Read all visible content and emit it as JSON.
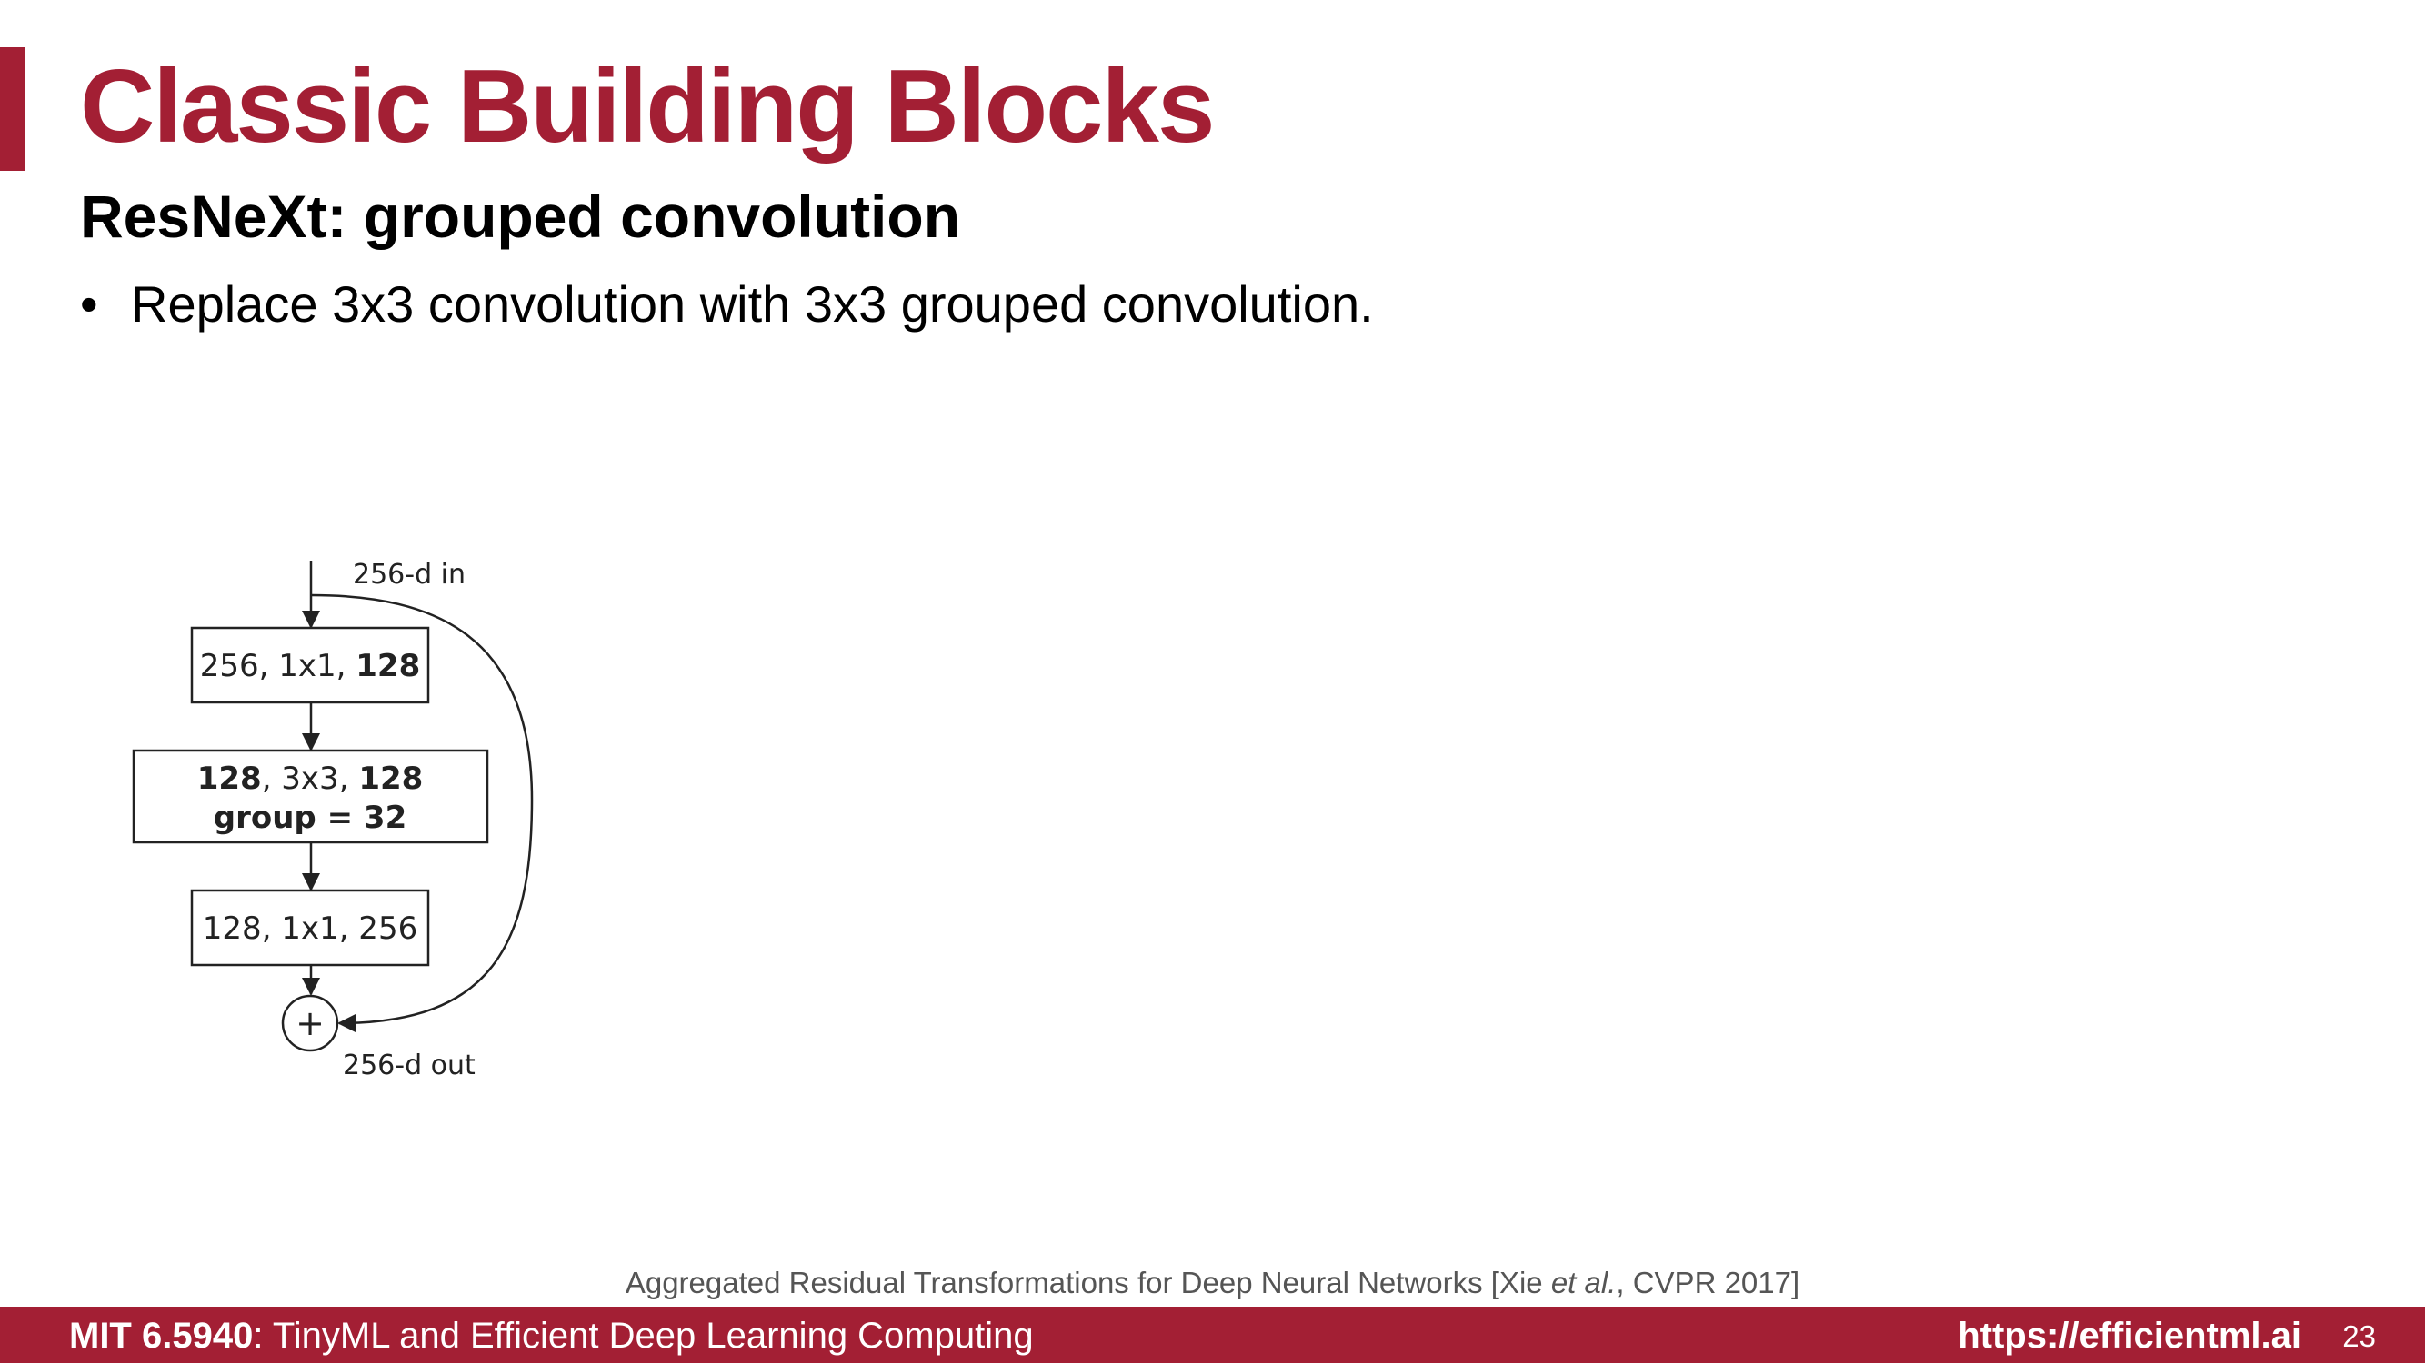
{
  "slide": {
    "title": "Classic Building Blocks",
    "subtitle": "ResNeXt: grouped convolution",
    "bullets": [
      "Replace 3x3 convolution with 3x3 grouped convolution."
    ],
    "bullet_symbol": "•"
  },
  "diagram": {
    "input_label": "256-d in",
    "output_label": "256-d out",
    "block1": {
      "plain": "256, 1x1, ",
      "bold": "128"
    },
    "block2": {
      "bold_a": "128",
      "plain": ", 3x3, ",
      "bold_b": "128",
      "line2": "group = 32"
    },
    "block3": {
      "plain": "128, 1x1, 256"
    },
    "sum_symbol": "+"
  },
  "citation": {
    "prefix": "Aggregated Residual Transformations for Deep Neural Networks [Xie ",
    "italic": "et al.",
    "suffix": ", CVPR 2017]"
  },
  "footer": {
    "course_code": "MIT 6.5940",
    "course_name": ": TinyML and Efficient Deep Learning Computing",
    "url": "https://efficientml.ai",
    "page_number": "23"
  },
  "colors": {
    "accent": "#a31f34",
    "text": "#000000",
    "citation": "#555555"
  }
}
